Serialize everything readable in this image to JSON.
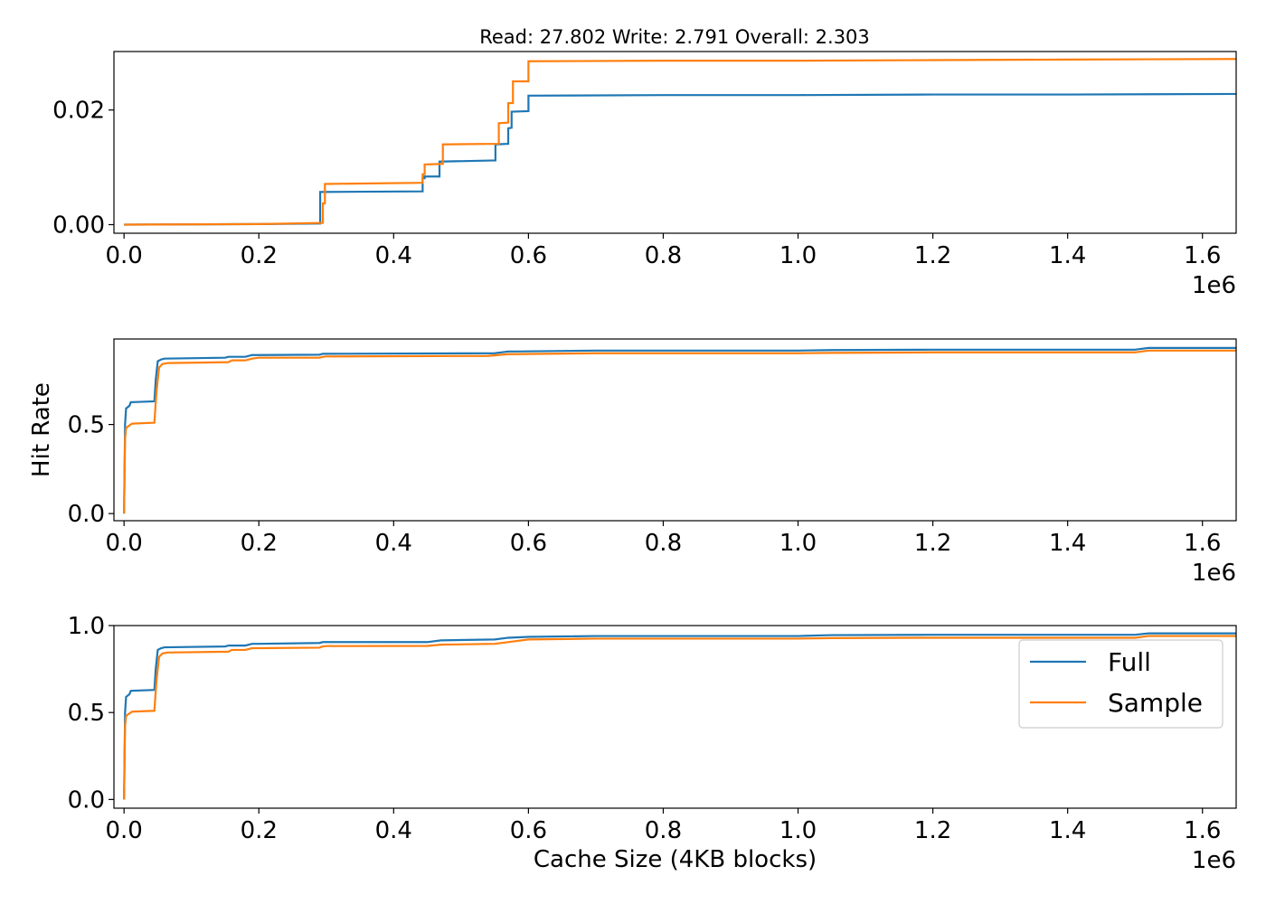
{
  "chart_data": [
    {
      "type": "line",
      "title": "Read: 27.802 Write: 2.791 Overall: 2.303",
      "xlabel": "",
      "ylabel": "",
      "x_offset_label": "1e6",
      "xlim": [
        -0.015,
        1.65
      ],
      "ylim": [
        -0.0015,
        0.0302
      ],
      "xticks": [
        0.0,
        0.2,
        0.4,
        0.6,
        0.8,
        1.0,
        1.2,
        1.4,
        1.6
      ],
      "xtick_labels": [
        "0.0",
        "0.2",
        "0.4",
        "0.6",
        "0.8",
        "1.0",
        "1.2",
        "1.4",
        "1.6"
      ],
      "yticks": [
        0.0,
        0.02
      ],
      "ytick_labels": [
        "0.00",
        "0.02"
      ],
      "grid": false,
      "series": [
        {
          "name": "Full",
          "color": "#1f77b4",
          "x": [
            0.0,
            0.2,
            0.288,
            0.291,
            0.291,
            0.443,
            0.443,
            0.446,
            0.446,
            0.468,
            0.468,
            0.551,
            0.551,
            0.57,
            0.57,
            0.575,
            0.575,
            0.6,
            0.6,
            0.8,
            1.0,
            1.2,
            1.4,
            1.65
          ],
          "y": [
            0.0,
            0.0001,
            0.0002,
            0.0002,
            0.0057,
            0.0058,
            0.0081,
            0.0081,
            0.0084,
            0.0084,
            0.011,
            0.0112,
            0.014,
            0.0141,
            0.0168,
            0.0169,
            0.0197,
            0.0198,
            0.0225,
            0.0226,
            0.0226,
            0.0227,
            0.0227,
            0.0228
          ]
        },
        {
          "name": "Sample",
          "color": "#ff7f0e",
          "x": [
            0.0,
            0.2,
            0.295,
            0.295,
            0.298,
            0.298,
            0.443,
            0.443,
            0.446,
            0.446,
            0.473,
            0.473,
            0.556,
            0.556,
            0.57,
            0.57,
            0.577,
            0.577,
            0.6,
            0.6,
            0.8,
            1.0,
            1.2,
            1.4,
            1.65
          ],
          "y": [
            0.0,
            0.0001,
            0.0003,
            0.0037,
            0.0037,
            0.0071,
            0.0073,
            0.0088,
            0.0088,
            0.0105,
            0.0106,
            0.014,
            0.0141,
            0.0177,
            0.0178,
            0.0212,
            0.0212,
            0.025,
            0.025,
            0.0285,
            0.0286,
            0.0286,
            0.0287,
            0.0288,
            0.0289
          ]
        }
      ]
    },
    {
      "type": "line",
      "title": "",
      "xlabel": "",
      "ylabel": "Hit Rate",
      "x_offset_label": "1e6",
      "xlim": [
        -0.015,
        1.65
      ],
      "ylim": [
        -0.04,
        0.98
      ],
      "xticks": [
        0.0,
        0.2,
        0.4,
        0.6,
        0.8,
        1.0,
        1.2,
        1.4,
        1.6
      ],
      "xtick_labels": [
        "0.0",
        "0.2",
        "0.4",
        "0.6",
        "0.8",
        "1.0",
        "1.2",
        "1.4",
        "1.6"
      ],
      "yticks": [
        0.0,
        0.5
      ],
      "ytick_labels": [
        "0.0",
        "0.5"
      ],
      "grid": false,
      "series": [
        {
          "name": "Full",
          "color": "#1f77b4",
          "x": [
            0.0,
            0.0015,
            0.003,
            0.008,
            0.01,
            0.045,
            0.047,
            0.05,
            0.055,
            0.06,
            0.15,
            0.155,
            0.18,
            0.19,
            0.2,
            0.29,
            0.295,
            0.3,
            0.55,
            0.57,
            0.58,
            0.7,
            1.0,
            1.05,
            1.2,
            1.5,
            1.52,
            1.65
          ],
          "y": [
            0.0,
            0.5,
            0.59,
            0.605,
            0.625,
            0.63,
            0.75,
            0.855,
            0.865,
            0.87,
            0.875,
            0.88,
            0.88,
            0.89,
            0.89,
            0.892,
            0.897,
            0.897,
            0.9,
            0.91,
            0.91,
            0.915,
            0.915,
            0.918,
            0.92,
            0.92,
            0.93,
            0.93
          ]
        },
        {
          "name": "Sample",
          "color": "#ff7f0e",
          "x": [
            0.0,
            0.0015,
            0.003,
            0.008,
            0.012,
            0.045,
            0.048,
            0.052,
            0.057,
            0.065,
            0.155,
            0.16,
            0.18,
            0.19,
            0.2,
            0.29,
            0.295,
            0.3,
            0.54,
            0.57,
            0.58,
            0.7,
            1.0,
            1.05,
            1.2,
            1.5,
            1.52,
            1.65
          ],
          "y": [
            0.0,
            0.42,
            0.48,
            0.495,
            0.505,
            0.51,
            0.68,
            0.82,
            0.84,
            0.845,
            0.85,
            0.86,
            0.86,
            0.87,
            0.875,
            0.875,
            0.88,
            0.882,
            0.885,
            0.895,
            0.895,
            0.9,
            0.9,
            0.902,
            0.905,
            0.905,
            0.915,
            0.915
          ]
        }
      ]
    },
    {
      "type": "line",
      "title": "",
      "xlabel": "Cache Size (4KB blocks)",
      "ylabel": "",
      "x_offset_label": "1e6",
      "xlim": [
        -0.015,
        1.65
      ],
      "ylim": [
        -0.05,
        1.0
      ],
      "xticks": [
        0.0,
        0.2,
        0.4,
        0.6,
        0.8,
        1.0,
        1.2,
        1.4,
        1.6
      ],
      "xtick_labels": [
        "0.0",
        "0.2",
        "0.4",
        "0.6",
        "0.8",
        "1.0",
        "1.2",
        "1.4",
        "1.6"
      ],
      "yticks": [
        0.0,
        0.5,
        1.0
      ],
      "ytick_labels": [
        "0.0",
        "0.5",
        "1.0"
      ],
      "grid": false,
      "legend": {
        "placement": "right",
        "entries": [
          {
            "label": "Full",
            "color": "#1f77b4"
          },
          {
            "label": "Sample",
            "color": "#ff7f0e"
          }
        ]
      },
      "series": [
        {
          "name": "Full",
          "color": "#1f77b4",
          "x": [
            0.0,
            0.0015,
            0.003,
            0.008,
            0.01,
            0.045,
            0.047,
            0.05,
            0.055,
            0.06,
            0.15,
            0.155,
            0.18,
            0.19,
            0.2,
            0.29,
            0.295,
            0.3,
            0.45,
            0.47,
            0.55,
            0.57,
            0.6,
            0.7,
            1.0,
            1.05,
            1.2,
            1.5,
            1.52,
            1.65
          ],
          "y": [
            0.0,
            0.5,
            0.59,
            0.605,
            0.625,
            0.63,
            0.75,
            0.86,
            0.87,
            0.875,
            0.88,
            0.885,
            0.885,
            0.895,
            0.895,
            0.9,
            0.905,
            0.905,
            0.905,
            0.915,
            0.92,
            0.93,
            0.935,
            0.94,
            0.94,
            0.945,
            0.947,
            0.947,
            0.955,
            0.955
          ]
        },
        {
          "name": "Sample",
          "color": "#ff7f0e",
          "x": [
            0.0,
            0.0015,
            0.003,
            0.008,
            0.012,
            0.045,
            0.048,
            0.052,
            0.057,
            0.065,
            0.155,
            0.16,
            0.18,
            0.19,
            0.2,
            0.29,
            0.295,
            0.3,
            0.45,
            0.47,
            0.55,
            0.57,
            0.6,
            0.7,
            1.0,
            1.05,
            1.2,
            1.5,
            1.52,
            1.65
          ],
          "y": [
            0.0,
            0.42,
            0.48,
            0.495,
            0.505,
            0.51,
            0.68,
            0.82,
            0.84,
            0.845,
            0.85,
            0.86,
            0.86,
            0.87,
            0.87,
            0.873,
            0.88,
            0.882,
            0.883,
            0.89,
            0.895,
            0.905,
            0.92,
            0.925,
            0.925,
            0.928,
            0.93,
            0.93,
            0.94,
            0.94
          ]
        }
      ]
    }
  ]
}
